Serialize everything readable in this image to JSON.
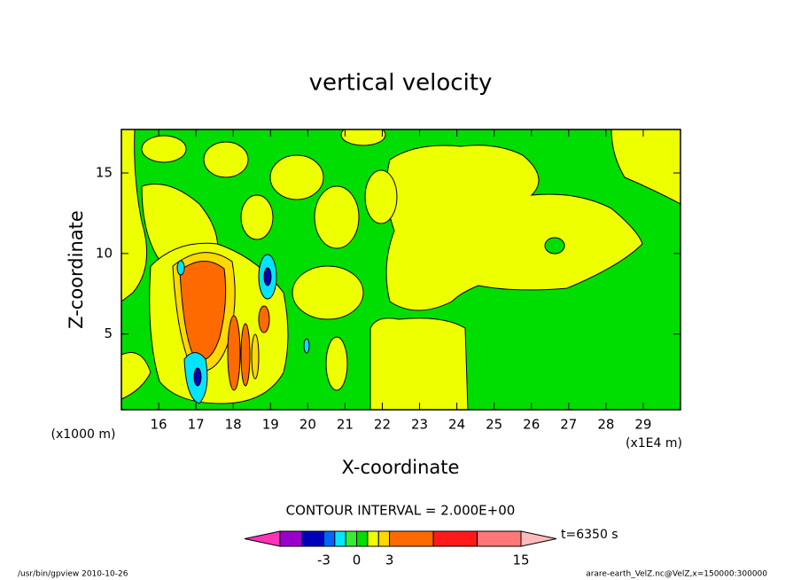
{
  "chart_data": {
    "type": "contour",
    "title": "vertical velocity",
    "x_label": "X-coordinate",
    "y_label": "Z-coordinate",
    "x_unit": "(x1E4 m)",
    "y_unit": "(x1000 m)",
    "xlim": [
      15,
      30
    ],
    "xticks": [
      16,
      17,
      18,
      19,
      20,
      21,
      22,
      23,
      24,
      25,
      26,
      27,
      28,
      29
    ],
    "ylim": [
      0.3,
      17.7
    ],
    "yticks": [
      5,
      10,
      15
    ],
    "colorbar": {
      "title": "CONTOUR INTERVAL = 2.000E+00",
      "levels": [
        -7,
        -5,
        -3,
        -2,
        -1,
        0,
        1,
        2,
        3,
        7,
        11,
        15
      ],
      "colors": [
        "#ff33bb",
        "#9900cc",
        "#0000bb",
        "#0066ff",
        "#00e5ff",
        "#33ee33",
        "#00dd00",
        "#eeff00",
        "#ffd800",
        "#ff6a00",
        "#ff1a1a",
        "#ff7777",
        "#ffbbbb"
      ],
      "ticks": [
        -3,
        0,
        3,
        15
      ]
    },
    "time_label": "t=6350 s",
    "footer_left": "/usr/bin/gpview  2010-10-26",
    "footer_right": "arare-earth_VelZ.nc@VelZ,x=150000:300000"
  }
}
